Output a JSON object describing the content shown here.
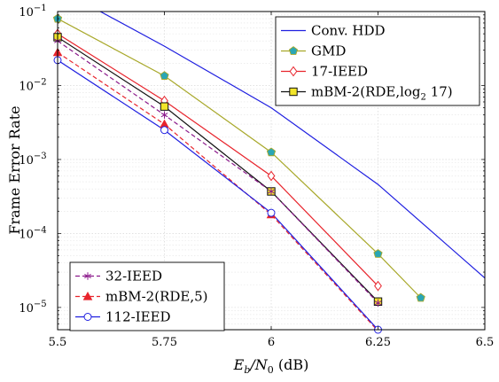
{
  "chart_data": {
    "type": "line",
    "title": "",
    "xlabel": {
      "main": "E",
      "sub_b": "b",
      "slash": "/N",
      "sub_0": "0",
      "unit": " (dB)"
    },
    "ylabel": "Frame Error Rate",
    "x_scale": "linear",
    "y_scale": "log",
    "xlim": [
      5.5,
      6.5
    ],
    "ylim": [
      5e-06,
      0.1
    ],
    "x_ticks": [
      {
        "value": 5.5,
        "label": "5.5"
      },
      {
        "value": 5.75,
        "label": "5.75"
      },
      {
        "value": 6,
        "label": "6"
      },
      {
        "value": 6.25,
        "label": "6.25"
      },
      {
        "value": 6.5,
        "label": "6.5"
      }
    ],
    "y_ticks": [
      {
        "value": 0.1,
        "base": "10",
        "exp": "−1"
      },
      {
        "value": 0.01,
        "base": "10",
        "exp": "−2"
      },
      {
        "value": 0.001,
        "base": "10",
        "exp": "−3"
      },
      {
        "value": 0.0001,
        "base": "10",
        "exp": "−4"
      },
      {
        "value": 1e-05,
        "base": "10",
        "exp": "−5"
      }
    ],
    "grid": true,
    "legends": [
      {
        "placement": "top-right",
        "series": [
          "Conv. HDD",
          "GMD",
          "17-IEED",
          "mBM-2(RDE,log2 17)"
        ]
      },
      {
        "placement": "bottom-left",
        "series": [
          "32-IEED",
          "mBM-2(RDE,5)",
          "112-IEED"
        ]
      }
    ],
    "series": [
      {
        "name": "Conv. HDD",
        "legend_label": {
          "text": "Conv. HDD"
        },
        "color": "#1f1fe0",
        "dash": "solid",
        "marker": "none",
        "x": [
          5.5,
          5.6,
          5.75,
          6,
          6.25,
          6.5
        ],
        "y": [
          0.13,
          0.1,
          0.034,
          0.005,
          0.00046,
          2.5e-05
        ]
      },
      {
        "name": "GMD",
        "legend_label": {
          "text": "GMD"
        },
        "color": "#a8a82a",
        "dash": "solid",
        "marker": "pentagon",
        "marker_fill": "#2aa6b5",
        "x": [
          5.5,
          5.75,
          6,
          6.25,
          6.35
        ],
        "y": [
          0.08,
          0.0135,
          0.00125,
          5.3e-05,
          1.35e-05
        ]
      },
      {
        "name": "17-IEED",
        "legend_label": {
          "text": "17-IEED"
        },
        "color": "#e8242c",
        "dash": "solid",
        "marker": "diamond",
        "marker_fill": "#ffffff",
        "x": [
          5.5,
          5.75,
          6,
          6.25
        ],
        "y": [
          0.05,
          0.0062,
          0.0006,
          1.95e-05
        ]
      },
      {
        "name": "mBM-2(RDE,log2 17)",
        "legend_label": {
          "text": "mBM-2(RDE,log",
          "sub": "2",
          "after": " 17)"
        },
        "color": "#111111",
        "dash": "solid",
        "marker": "square",
        "marker_fill": "#f2e52a",
        "x": [
          5.5,
          5.75,
          6,
          6.25
        ],
        "y": [
          0.045,
          0.0052,
          0.00037,
          1.2e-05
        ]
      },
      {
        "name": "32-IEED",
        "legend_label": {
          "text": "32-IEED"
        },
        "color": "#8c1a8c",
        "dash": "dashed",
        "marker": "star",
        "x": [
          5.5,
          5.75,
          6,
          6.25
        ],
        "y": [
          0.04,
          0.004,
          0.00037,
          1.15e-05
        ]
      },
      {
        "name": "mBM-2(RDE,5)",
        "legend_label": {
          "text": "mBM-2(RDE,5)"
        },
        "color": "#e8242c",
        "dash": "dashed",
        "marker": "triangle",
        "x": [
          5.5,
          5.75,
          6,
          6.25
        ],
        "y": [
          0.028,
          0.003,
          0.00018,
          4.8e-06
        ]
      },
      {
        "name": "112-IEED",
        "legend_label": {
          "text": "112-IEED"
        },
        "color": "#1f1fe0",
        "dash": "solid",
        "marker": "circle",
        "marker_fill": "#ffffff",
        "x": [
          5.5,
          5.75,
          6,
          6.25
        ],
        "y": [
          0.022,
          0.0025,
          0.00019,
          5e-06
        ]
      }
    ]
  }
}
